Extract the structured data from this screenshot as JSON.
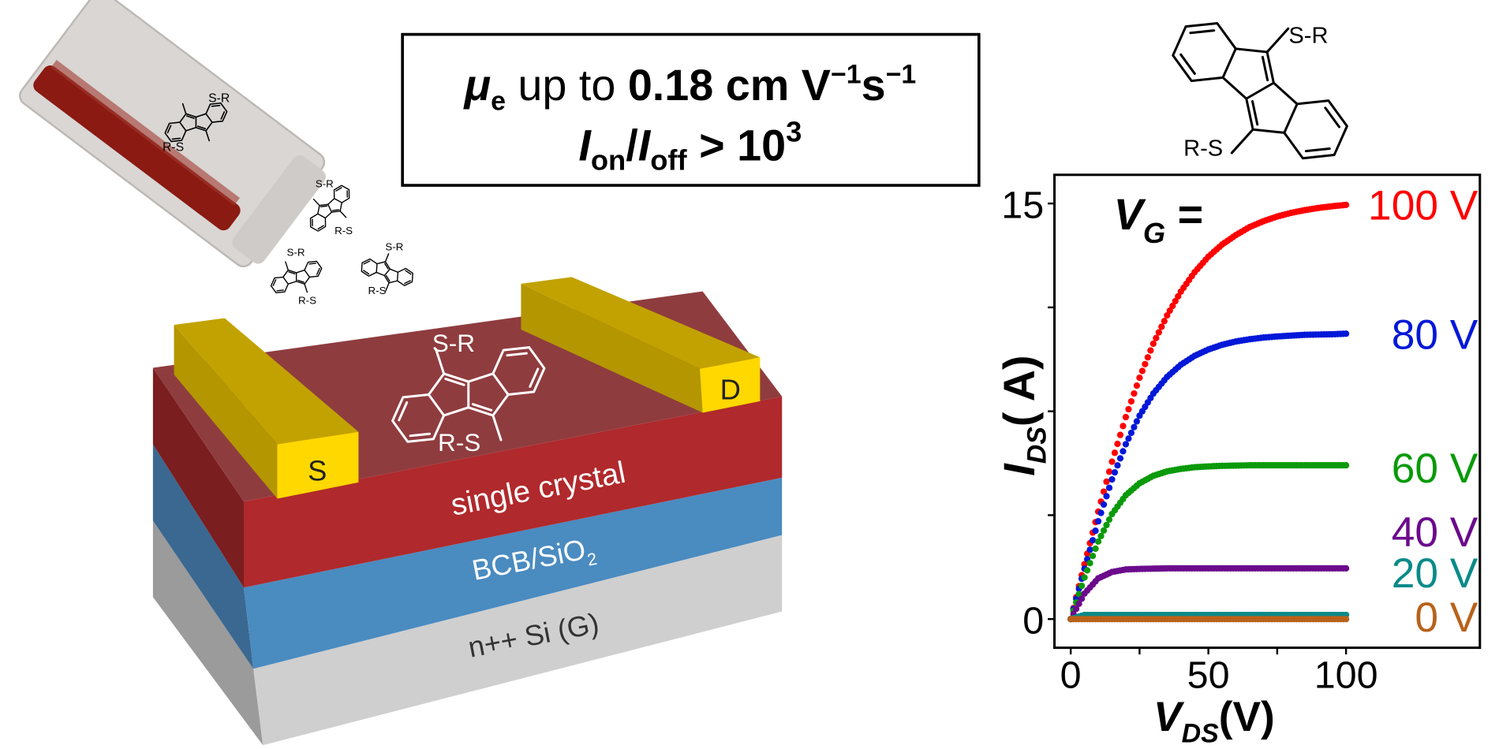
{
  "headline": {
    "mu": "μ",
    "mu_sub": "e",
    "up_to": " up to ",
    "mobility": "0.18 cm V",
    "exp1": "−1",
    "s": "s",
    "exp2": "−1",
    "i_on": "I",
    "on": "on",
    "slash": "/",
    "i_off": "I",
    "off": "off",
    "gt": " > 10",
    "exp3": "3"
  },
  "device": {
    "source": "S",
    "drain": "D",
    "layer_crystal": "single crystal",
    "layer_dielectric": "BCB/SiO",
    "dielectric_sub": "2",
    "layer_gate": "n++ Si (G)"
  },
  "molecule": {
    "top_sub": "S-R",
    "bottom_sub": "R-S"
  },
  "chart_data": {
    "type": "scatter",
    "title": "",
    "xlabel": {
      "main": "V",
      "sub": "DS",
      "unit": "(V)"
    },
    "ylabel": {
      "main": "I",
      "sub": "DS",
      "unit": "( A)"
    },
    "legend_title": {
      "main": "V",
      "sub": "G",
      "eq": " ="
    },
    "legend_placement": "right, next to curve ends",
    "xlim": [
      -5,
      145
    ],
    "ylim": [
      -0.8,
      16
    ],
    "xticks": [
      0,
      50,
      100
    ],
    "xtick_labels": [
      "0",
      "50",
      "100"
    ],
    "xminor": [
      25,
      75
    ],
    "yticks": [
      0,
      15
    ],
    "ytick_labels": [
      "0",
      "15"
    ],
    "yminor": [
      3.75,
      7.5,
      11.25
    ],
    "grid": false,
    "x": [
      0,
      5,
      10,
      15,
      20,
      25,
      30,
      35,
      40,
      45,
      50,
      55,
      60,
      65,
      70,
      75,
      80,
      85,
      90,
      95,
      100
    ],
    "series": [
      {
        "name": "100 V",
        "color": "#ff0000",
        "values": [
          0,
          1.98,
          3.88,
          5.68,
          7.29,
          8.71,
          9.94,
          10.96,
          11.82,
          12.52,
          13.08,
          13.52,
          13.86,
          14.15,
          14.36,
          14.53,
          14.66,
          14.76,
          14.84,
          14.9,
          14.95
        ]
      },
      {
        "name": "80 V",
        "color": "#0018d8",
        "values": [
          0,
          1.82,
          3.53,
          5.04,
          6.31,
          7.34,
          8.14,
          8.74,
          9.18,
          9.5,
          9.73,
          9.9,
          10.02,
          10.1,
          10.16,
          10.2,
          10.23,
          10.26,
          10.27,
          10.28,
          10.3
        ]
      },
      {
        "name": "60 V",
        "color": "#0a9a0a",
        "values": [
          0,
          1.5,
          2.8,
          3.79,
          4.47,
          4.9,
          5.17,
          5.33,
          5.42,
          5.48,
          5.51,
          5.53,
          5.54,
          5.55,
          5.55,
          5.55,
          5.55,
          5.55,
          5.55,
          5.55,
          5.55
        ]
      },
      {
        "name": "40 V",
        "color": "#6b0a8c",
        "values": [
          0,
          0.92,
          1.47,
          1.7,
          1.79,
          1.81,
          1.82,
          1.83,
          1.83,
          1.83,
          1.83,
          1.83,
          1.83,
          1.83,
          1.83,
          1.83,
          1.83,
          1.83,
          1.83,
          1.83,
          1.83
        ]
      },
      {
        "name": "20 V",
        "color": "#0a8a8a",
        "values": [
          0,
          0.15,
          0.15,
          0.15,
          0.15,
          0.15,
          0.15,
          0.15,
          0.15,
          0.15,
          0.15,
          0.15,
          0.15,
          0.15,
          0.15,
          0.15,
          0.15,
          0.15,
          0.15,
          0.15,
          0.15
        ]
      },
      {
        "name": "0 V",
        "color": "#b8621b",
        "values": [
          0,
          0,
          0,
          0,
          0,
          0,
          0,
          0,
          0,
          0,
          0,
          0,
          0,
          0,
          0,
          0,
          0,
          0,
          0,
          0,
          0
        ]
      }
    ]
  }
}
